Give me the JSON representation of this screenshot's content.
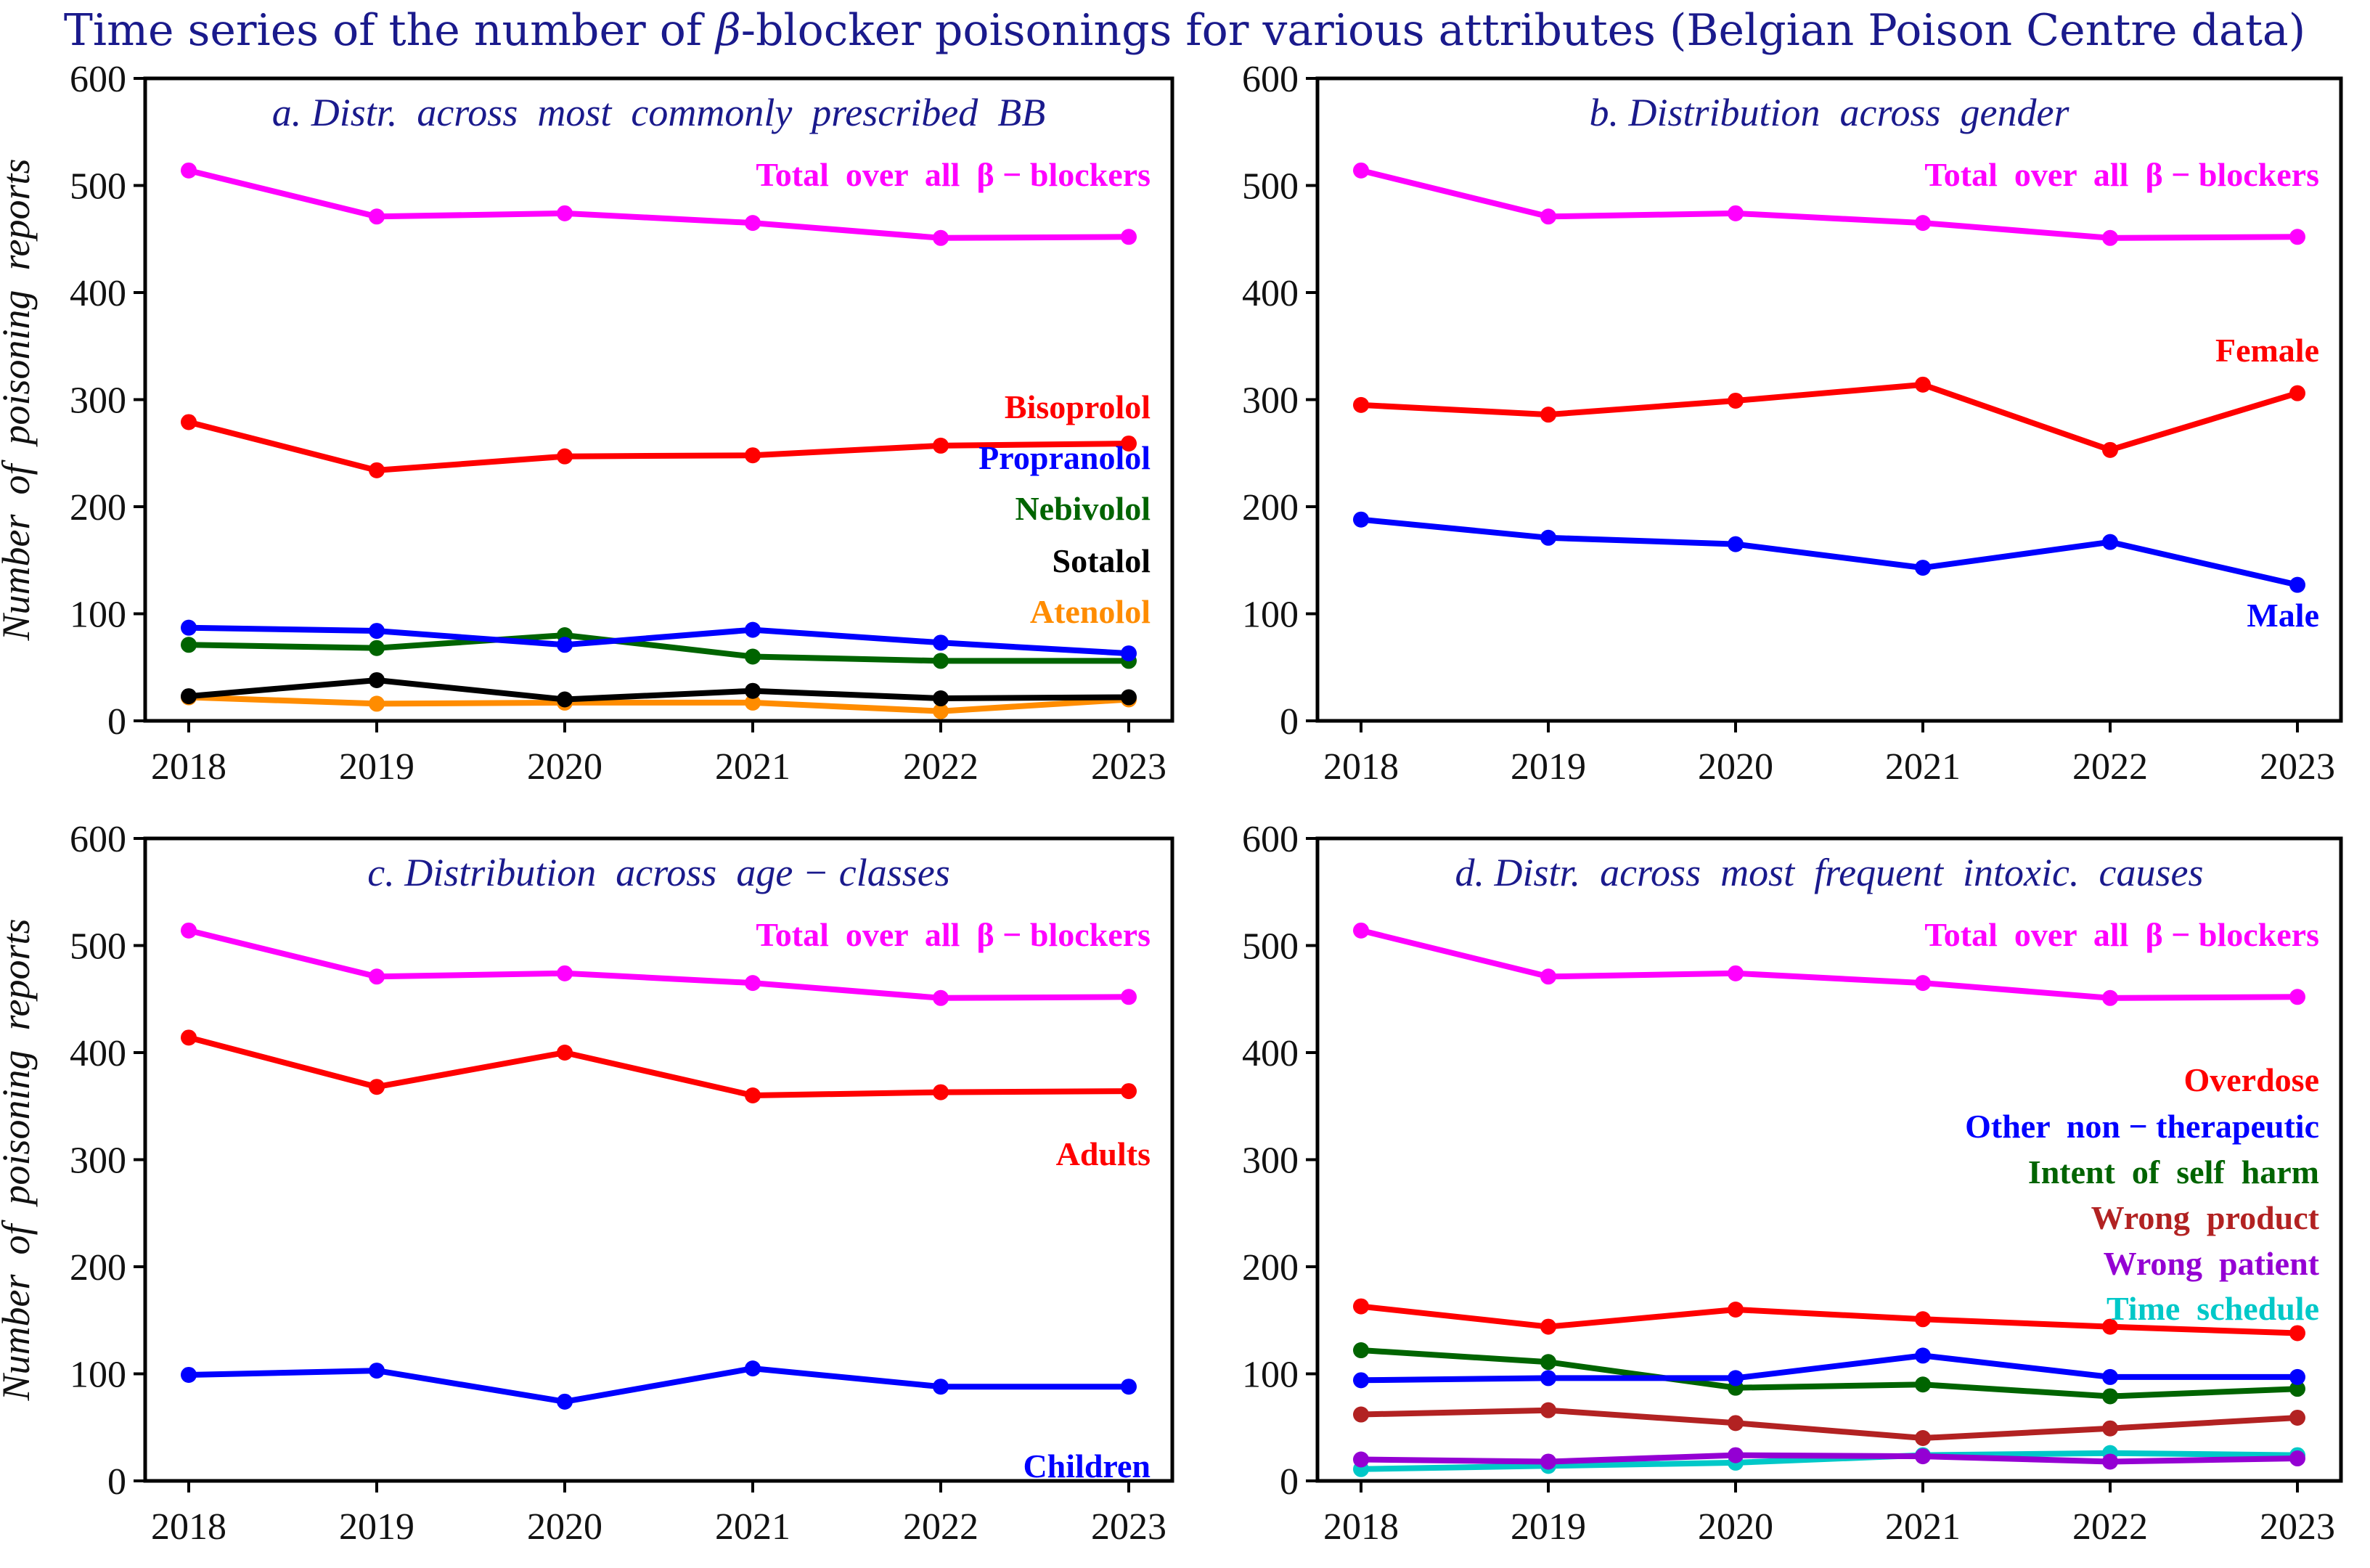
{
  "figure": {
    "title": "Time series of the number of β-blocker poisonings for various attributes (Belgian Poison Centre data)",
    "title_before": "Time series of the number of ",
    "title_beta": "β",
    "title_after": "-blocker poisonings for various attributes (Belgian Poison Centre data)"
  },
  "colors": {
    "magenta": "#ff00ff",
    "red": "#ff0000",
    "blue": "#0000ff",
    "green": "#006400",
    "black": "#000000",
    "orange": "#ff8c00",
    "brown": "#b22222",
    "purple": "#9400d3",
    "cyan": "#00c8c8",
    "title": "#1a1a8c"
  },
  "chart_data": [
    {
      "id": "a",
      "type": "line",
      "title": "a. Distr.  across  most  commonly  prescribed  BB",
      "xlabel": "",
      "ylabel": "Number  of  poisoning  reports",
      "x": [
        2018,
        2019,
        2020,
        2021,
        2022,
        2023
      ],
      "ylim": [
        0,
        600
      ],
      "yticks": [
        0,
        100,
        200,
        300,
        400,
        500,
        600
      ],
      "series": [
        {
          "name": "Total  over  all  β − blockers",
          "color": "#ff00ff",
          "values": [
            514,
            471,
            474,
            465,
            451,
            452
          ]
        },
        {
          "name": "Bisoprolol",
          "color": "#ff0000",
          "values": [
            279,
            234,
            247,
            248,
            257,
            259
          ]
        },
        {
          "name": "Propranolol",
          "color": "#0000ff",
          "values": [
            87,
            84,
            71,
            85,
            73,
            63
          ]
        },
        {
          "name": "Nebivolol",
          "color": "#006400",
          "values": [
            71,
            68,
            80,
            60,
            56,
            56
          ]
        },
        {
          "name": "Sotalol",
          "color": "#000000",
          "values": [
            23,
            38,
            20,
            28,
            21,
            22
          ]
        },
        {
          "name": "Atenolol",
          "color": "#ff8c00",
          "values": [
            22,
            16,
            17,
            17,
            9,
            20
          ]
        }
      ]
    },
    {
      "id": "b",
      "type": "line",
      "title": "b. Distribution  across  gender",
      "xlabel": "",
      "ylabel": "",
      "x": [
        2018,
        2019,
        2020,
        2021,
        2022,
        2023
      ],
      "ylim": [
        0,
        600
      ],
      "yticks": [
        0,
        100,
        200,
        300,
        400,
        500,
        600
      ],
      "series": [
        {
          "name": "Total  over  all  β − blockers",
          "color": "#ff00ff",
          "values": [
            514,
            471,
            474,
            465,
            451,
            452
          ]
        },
        {
          "name": "Female",
          "color": "#ff0000",
          "values": [
            295,
            286,
            299,
            314,
            253,
            306
          ]
        },
        {
          "name": "Male",
          "color": "#0000ff",
          "values": [
            188,
            171,
            165,
            143,
            167,
            127
          ]
        }
      ]
    },
    {
      "id": "c",
      "type": "line",
      "title": "c. Distribution  across  age − classes",
      "xlabel": "",
      "ylabel": "Number  of  poisoning  reports",
      "x": [
        2018,
        2019,
        2020,
        2021,
        2022,
        2023
      ],
      "ylim": [
        0,
        600
      ],
      "yticks": [
        0,
        100,
        200,
        300,
        400,
        500,
        600
      ],
      "series": [
        {
          "name": "Total  over  all  β − blockers",
          "color": "#ff00ff",
          "values": [
            514,
            471,
            474,
            465,
            451,
            452
          ]
        },
        {
          "name": "Adults",
          "color": "#ff0000",
          "values": [
            414,
            368,
            400,
            360,
            363,
            364
          ]
        },
        {
          "name": "Children",
          "color": "#0000ff",
          "values": [
            99,
            103,
            74,
            105,
            88,
            88
          ]
        }
      ]
    },
    {
      "id": "d",
      "type": "line",
      "title": "d. Distr.  across  most  frequent  intoxic.  causes",
      "xlabel": "",
      "ylabel": "",
      "x": [
        2018,
        2019,
        2020,
        2021,
        2022,
        2023
      ],
      "ylim": [
        0,
        600
      ],
      "yticks": [
        0,
        100,
        200,
        300,
        400,
        500,
        600
      ],
      "series": [
        {
          "name": "Total  over  all  β − blockers",
          "color": "#ff00ff",
          "values": [
            514,
            471,
            474,
            465,
            451,
            452
          ]
        },
        {
          "name": "Overdose",
          "color": "#ff0000",
          "values": [
            163,
            144,
            160,
            151,
            144,
            138
          ]
        },
        {
          "name": "Other  non − therapeutic",
          "color": "#0000ff",
          "values": [
            94,
            96,
            96,
            117,
            97,
            97
          ]
        },
        {
          "name": "Intent  of  self  harm",
          "color": "#006400",
          "values": [
            122,
            111,
            87,
            90,
            79,
            86
          ]
        },
        {
          "name": "Wrong  product",
          "color": "#b22222",
          "values": [
            62,
            66,
            54,
            40,
            49,
            59
          ]
        },
        {
          "name": "Wrong  patient",
          "color": "#9400d3",
          "values": [
            20,
            18,
            24,
            23,
            18,
            21
          ]
        },
        {
          "name": "Time  schedule",
          "color": "#00c8c8",
          "values": [
            11,
            14,
            17,
            24,
            26,
            24
          ]
        }
      ]
    }
  ]
}
